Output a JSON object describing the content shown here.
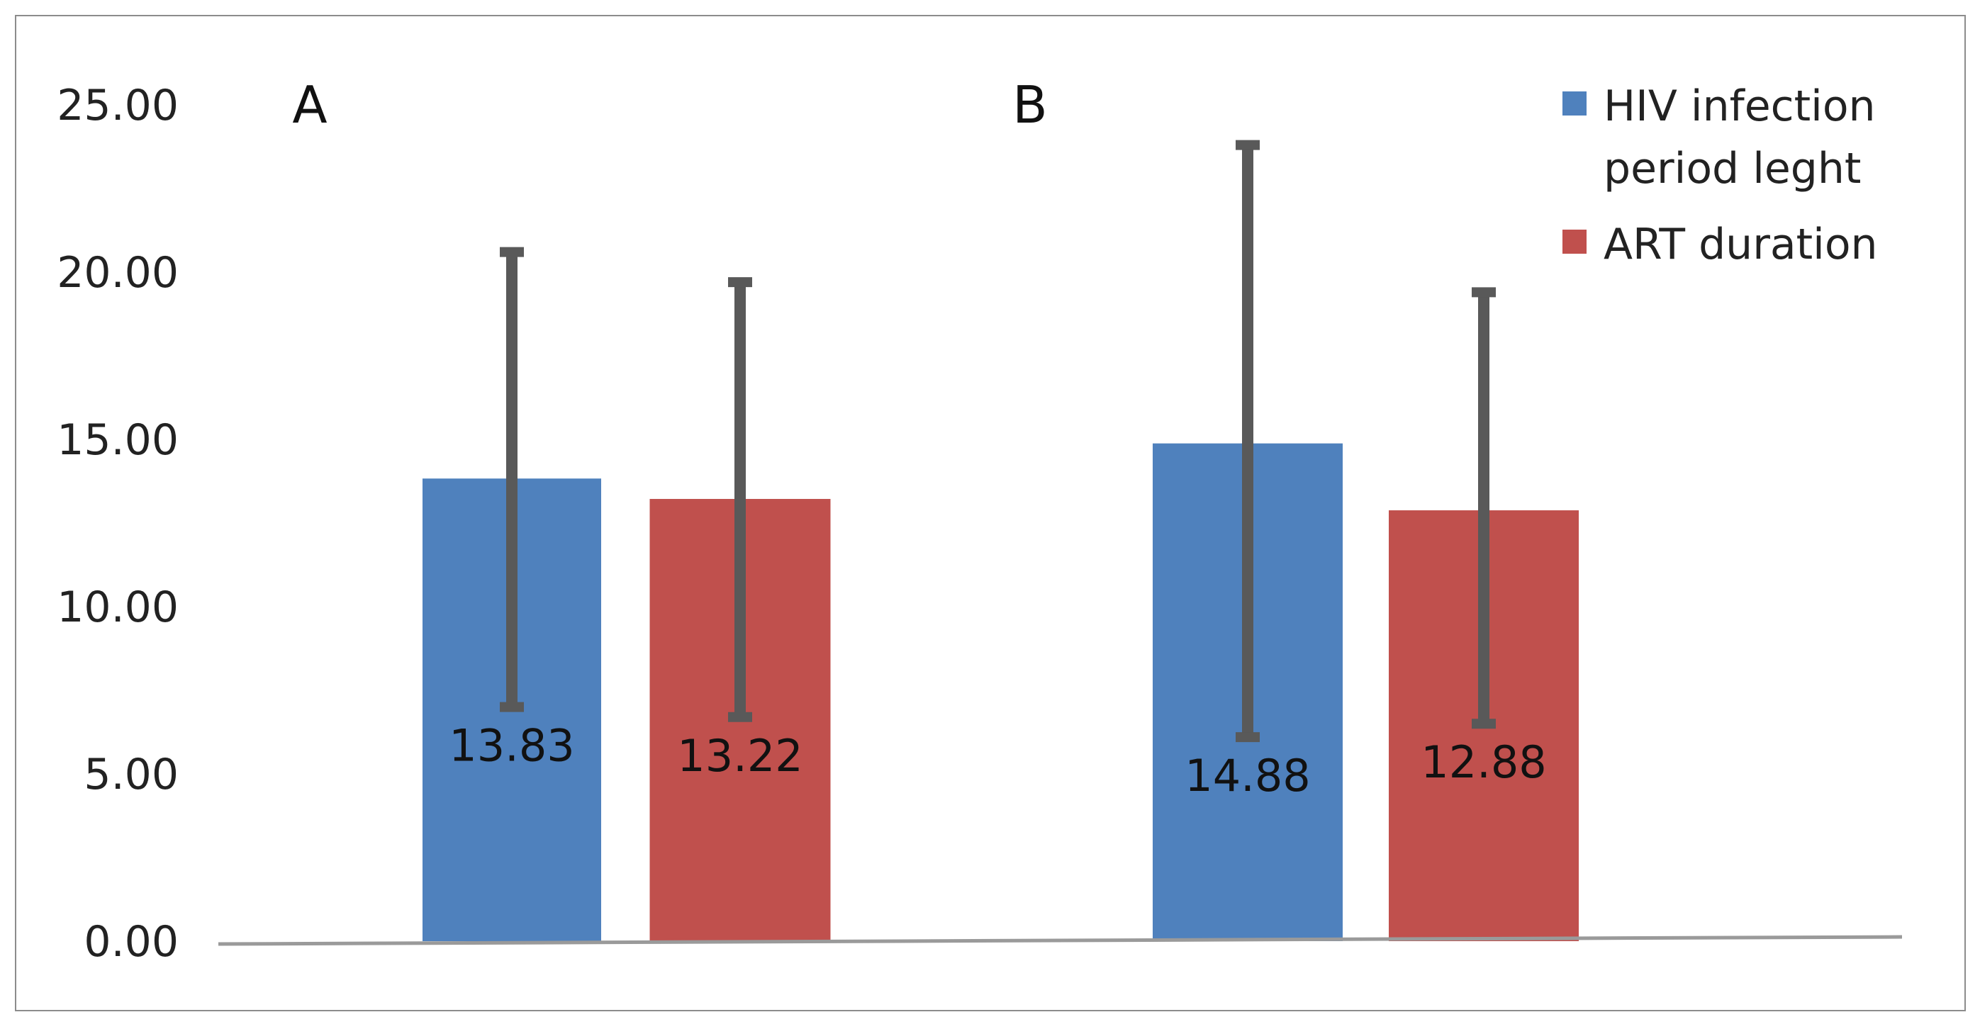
{
  "chart_data": {
    "type": "bar",
    "groups": [
      {
        "label": "A",
        "values": [
          13.83,
          13.22
        ],
        "error_high": [
          20.6,
          19.7
        ],
        "error_low": [
          7.0,
          6.7
        ]
      },
      {
        "label": "B",
        "values": [
          14.88,
          12.88
        ],
        "error_high": [
          23.8,
          19.4
        ],
        "error_low": [
          6.1,
          6.5
        ]
      }
    ],
    "series": [
      {
        "legend_lines": [
          "HIV infection",
          "period leght"
        ],
        "color": "#4f81bd"
      },
      {
        "legend_lines": [
          "ART duration"
        ],
        "color": "#c0504d"
      }
    ],
    "data_labels": [
      [
        "13.83",
        "13.22"
      ],
      [
        "14.88",
        "12.88"
      ]
    ],
    "y_ticks": [
      "0.00",
      "5.00",
      "10.00",
      "15.00",
      "20.00",
      "25.00"
    ],
    "ylim": [
      0,
      25
    ],
    "grid": false,
    "legend_position": "top-right",
    "title": "",
    "xlabel": "",
    "ylabel": "",
    "error_bar_color": "#595959",
    "axis_color": "#9a9a9a"
  }
}
